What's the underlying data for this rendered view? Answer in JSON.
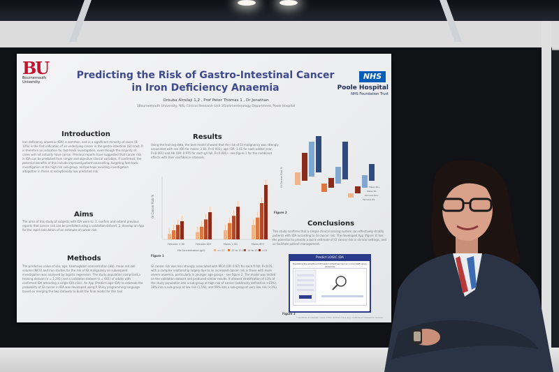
{
  "poster": {
    "logo_text": "BU",
    "logo_name": "Bournemouth University",
    "title": "Predicting the Risk of Gastro-Intestinal Cancer in Iron Deficiency Anaemia",
    "authors": "Orouba Almilaji 1,2 , Prof Peter Thomas 1 , Dr Jonathan",
    "affiliations": "1Bournemouth University, NIS, Clinical Research Unit      2Gastroenterology Department, Poole Hospital",
    "nhs_logo": "NHS",
    "hospital": "Poole Hospital",
    "trust": "NHS Foundation Trust",
    "sections": {
      "introduction": "Introduction",
      "aims": "Aims",
      "methods": "Methods",
      "results": "Results",
      "conclusions": "Conclusions"
    },
    "intro_text": "Iron deficiency anaemia (IDA) is common, and in a significant minority of cases (8-10%) is the first indication of an underlying cancer in the gastro-intestinal (GI) tract. It is therefore an indication for fast-track investigation, even though the majority of cases will not actually have cancer. Previous reports have suggested that cancer risk in IDA can be predicted from simple and objective clinical variables. If confirmed, the potential benefits of this include improved patient counselling, targeting fast-track investigation at the high risk sub-group, and perhaps avoiding investigation altogether in those at exceptionally low predicted risk.",
    "aims_text": "The aims of this study of subjects with IDA were to: 1. confirm and extend previous reports that cancer risk can be predicted using a validation dataset. 2. develop an App for the rapid calculation of an estimate of cancer risk.",
    "methods_text": "The predictive value of sex, age, haemoglobin concentration (Hb), mean red cell volume (MCV) and iron studies for the risk of GI malignancy on subsequent investigation was analysed by logistic regression. The study population comprised a training dataset (n = 2,291) and a validation dataset (n = 601) of adults with confirmed IDA attending a single IDA clinic. An App (Predict Logic IDA) to estimate the probability of GI cancer in IDA was developed using R Shiny programming language based on merging the two datasets to build the final model for this tool.",
    "results_text": "Using the training data, the best model showed that the risk of GI malignancy was strongly associated with sex (OR for males: 2.81, P<0.001), age (OR: 1.05 for each added year, P<0.001) and Hb (OR: 0.975 for each g/l fall, P<0.001) - see figure 1 for the combined effects with their confidence intervals.",
    "results_text_2": "GI cancer risk was less strongly associated with MCV (OR: 0.97) for each fl fall, P<0.05, with a complex relationship largely due to an increased cancer risk in those with more severe anaemia, particularly in younger age groups - see figure 2. The model was tested on the validation dataset and produced similar results. It allowed stratification of 13% of the study population into a sub-group at high risk of cancer (arbitrarily defined as >15%), 28% into a sub-group at low risk (1.5%), and 59% into a sub-group at very low risk (<1%).",
    "conclusions_text": "This study confirms that a simple clinical scoring system can effectively stratify patients with IDA according to GI cancer risk. The developed App (figure 3) has the potential to provide a quick estimate of GI cancer risk in clinical settings, and so facilitate patient management.",
    "figure1": "Figure 1",
    "figure2": "Figure 2",
    "figure3": "Figure 3",
    "app_title": "Predict LOGIC IDA",
    "app_subtitle": "Predicting the Likelihood Of Gastro-Intestinal Cancer in Iron Deficiency Anaemia",
    "footnote": "* Conflicts of interest: none of the authors have any conflicts of interest to declare",
    "chart1_ylabel": "GI Cancer Risk %",
    "chart1_xlabel": "Hb Concentration (g/l)",
    "chart1_legend": [
      "<=11",
      "12 to 13.5",
      "14 to 15",
      ">15"
    ],
    "chart1_categories": [
      "Females < 60",
      "Females 60+",
      "Males < 60",
      "Males 60+"
    ],
    "chart2_ylabel": "GI Cancer Risk %",
    "chart2_legend": [
      "Males 60+",
      "Males 60-",
      "Females 60+",
      "Females 60-"
    ]
  },
  "colors": {
    "title": "#3d4a8f",
    "nhs_blue": "#005eb8",
    "bar_light": "#f0b48a",
    "bar_mid": "#e0783e",
    "bar_dark": "#8a2c1c",
    "bar_blue": "#2f4b7c",
    "bar_blue_light": "#7fa7cf"
  }
}
